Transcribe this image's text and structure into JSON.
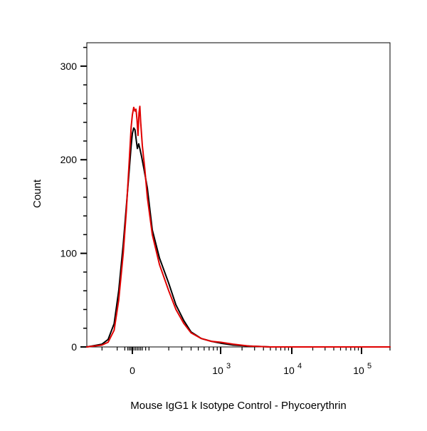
{
  "chart_data": {
    "type": "area",
    "title": "",
    "xlabel": "Mouse IgG1 k Isotype Control - Phycoerythrin",
    "ylabel": "Count",
    "x_scale": "biexponential",
    "xlim": [
      -300,
      200000
    ],
    "ylim": [
      0,
      325
    ],
    "y_ticks": [
      0,
      100,
      200,
      300
    ],
    "x_tick_labels": [
      {
        "value": 0,
        "base": "0",
        "exponent": ""
      },
      {
        "value": 1000,
        "base": "10",
        "exponent": "3"
      },
      {
        "value": 10000,
        "base": "10",
        "exponent": "4"
      },
      {
        "value": 100000,
        "base": "10",
        "exponent": "5"
      }
    ],
    "grid": false,
    "legend": "none",
    "series": [
      {
        "color": "#000000",
        "points": [
          [
            -300,
            0
          ],
          [
            -200,
            3
          ],
          [
            -160,
            8
          ],
          [
            -120,
            25
          ],
          [
            -90,
            60
          ],
          [
            -60,
            110
          ],
          [
            -40,
            150
          ],
          [
            -20,
            190
          ],
          [
            -8,
            215
          ],
          [
            0,
            228
          ],
          [
            8,
            234
          ],
          [
            16,
            232
          ],
          [
            24,
            220
          ],
          [
            30,
            212
          ],
          [
            38,
            217
          ],
          [
            45,
            212
          ],
          [
            55,
            204
          ],
          [
            70,
            190
          ],
          [
            90,
            170
          ],
          [
            120,
            125
          ],
          [
            150,
            95
          ],
          [
            200,
            68
          ],
          [
            250,
            45
          ],
          [
            320,
            28
          ],
          [
            400,
            16
          ],
          [
            550,
            9
          ],
          [
            750,
            6
          ],
          [
            1000,
            4
          ],
          [
            1500,
            2
          ],
          [
            2500,
            1
          ],
          [
            5000,
            0
          ],
          [
            200000,
            0
          ]
        ]
      },
      {
        "color": "#e00000",
        "points": [
          [
            -300,
            0
          ],
          [
            -200,
            2
          ],
          [
            -160,
            5
          ],
          [
            -120,
            18
          ],
          [
            -90,
            50
          ],
          [
            -60,
            100
          ],
          [
            -40,
            145
          ],
          [
            -20,
            200
          ],
          [
            -8,
            235
          ],
          [
            0,
            248
          ],
          [
            8,
            256
          ],
          [
            16,
            252
          ],
          [
            22,
            254
          ],
          [
            28,
            243
          ],
          [
            34,
            226
          ],
          [
            40,
            250
          ],
          [
            45,
            257
          ],
          [
            50,
            240
          ],
          [
            60,
            215
          ],
          [
            75,
            190
          ],
          [
            90,
            160
          ],
          [
            120,
            120
          ],
          [
            150,
            88
          ],
          [
            200,
            60
          ],
          [
            250,
            40
          ],
          [
            320,
            25
          ],
          [
            400,
            15
          ],
          [
            550,
            9
          ],
          [
            750,
            6
          ],
          [
            1000,
            5
          ],
          [
            1500,
            3
          ],
          [
            2500,
            1
          ],
          [
            5000,
            0
          ],
          [
            200000,
            0
          ]
        ]
      }
    ]
  }
}
